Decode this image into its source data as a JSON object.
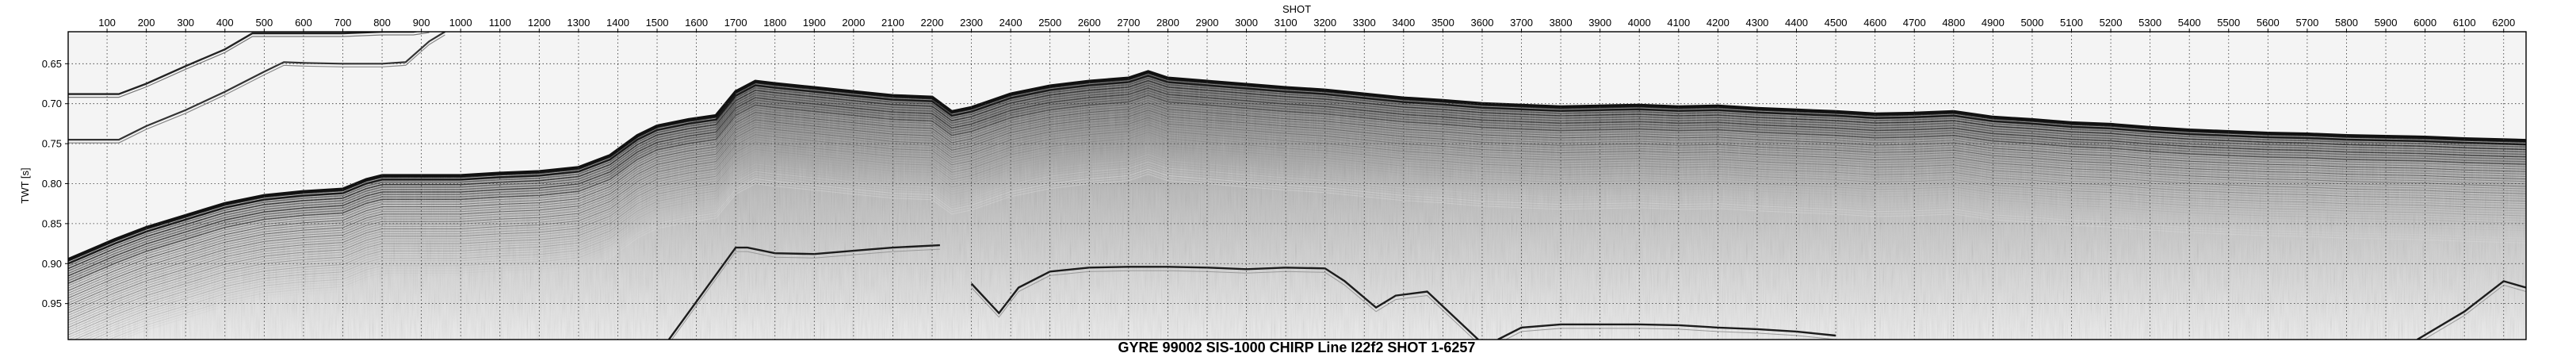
{
  "chart_data": {
    "type": "seismic_profile",
    "title": "GYRE 99002 SIS-1000 CHIRP Line I22f2 SHOT 1-6257",
    "xlabel": "SHOT",
    "ylabel": "TWT [s]",
    "xlim": [
      1,
      6257
    ],
    "ylim": [
      0.61,
      0.995
    ],
    "y_inverted": true,
    "grid": true,
    "grid_style": "dotted",
    "x_tick_position": "top",
    "x_ticks": [
      100,
      200,
      300,
      400,
      500,
      600,
      700,
      800,
      900,
      1000,
      1100,
      1200,
      1300,
      1400,
      1500,
      1600,
      1700,
      1800,
      1900,
      2000,
      2100,
      2200,
      2300,
      2400,
      2500,
      2600,
      2700,
      2800,
      2900,
      3000,
      3100,
      3200,
      3300,
      3400,
      3500,
      3600,
      3700,
      3800,
      3900,
      4000,
      4100,
      4200,
      4300,
      4400,
      4500,
      4600,
      4700,
      4800,
      4900,
      5000,
      5100,
      5200,
      5300,
      5400,
      5500,
      5600,
      5700,
      5800,
      5900,
      6000,
      6100,
      6200
    ],
    "y_ticks": [
      0.65,
      0.7,
      0.75,
      0.8,
      0.85,
      0.9,
      0.95
    ],
    "seafloor_reflector": {
      "shot": [
        1,
        120,
        200,
        300,
        400,
        500,
        600,
        700,
        760,
        800,
        900,
        1000,
        1100,
        1200,
        1300,
        1380,
        1450,
        1500,
        1580,
        1650,
        1700,
        1750,
        1800,
        1900,
        2000,
        2100,
        2200,
        2250,
        2300,
        2400,
        2500,
        2600,
        2700,
        2750,
        2800,
        2900,
        3000,
        3100,
        3200,
        3300,
        3400,
        3500,
        3600,
        3700,
        3800,
        3900,
        4000,
        4100,
        4200,
        4300,
        4400,
        4500,
        4600,
        4700,
        4800,
        4900,
        5000,
        5100,
        5200,
        5300,
        5400,
        5500,
        5600,
        5700,
        5800,
        5900,
        6000,
        6100,
        6257
      ],
      "twt": [
        0.895,
        0.87,
        0.855,
        0.84,
        0.825,
        0.815,
        0.81,
        0.807,
        0.795,
        0.79,
        0.79,
        0.79,
        0.787,
        0.785,
        0.78,
        0.765,
        0.74,
        0.728,
        0.72,
        0.715,
        0.685,
        0.672,
        0.675,
        0.68,
        0.685,
        0.69,
        0.692,
        0.71,
        0.705,
        0.688,
        0.678,
        0.672,
        0.668,
        0.66,
        0.668,
        0.672,
        0.676,
        0.68,
        0.683,
        0.688,
        0.693,
        0.696,
        0.7,
        0.702,
        0.704,
        0.703,
        0.702,
        0.704,
        0.703,
        0.706,
        0.708,
        0.71,
        0.713,
        0.712,
        0.71,
        0.717,
        0.72,
        0.724,
        0.726,
        0.73,
        0.733,
        0.735,
        0.737,
        0.738,
        0.74,
        0.741,
        0.742,
        0.744,
        0.746
      ]
    },
    "first_multiple": {
      "shot": [
        1,
        130,
        200,
        300,
        400,
        470,
        500,
        600,
        700,
        800,
        880,
        920
      ],
      "twt": [
        0.688,
        0.688,
        0.675,
        0.653,
        0.632,
        0.612,
        0.612,
        0.612,
        0.612,
        0.61,
        0.61,
        0.607
      ]
    },
    "second_multiple": {
      "shot": [
        1,
        130,
        200,
        300,
        400,
        500,
        550,
        600,
        700,
        800,
        860,
        920,
        960
      ],
      "twt": [
        0.745,
        0.745,
        0.728,
        0.708,
        0.685,
        0.66,
        0.648,
        0.649,
        0.65,
        0.65,
        0.648,
        0.622,
        0.61
      ]
    },
    "bottom_echo": [
      {
        "shot": [
          1530,
          1700,
          1730,
          1800,
          1900,
          2000,
          2100,
          2220
        ],
        "twt": [
          0.995,
          0.88,
          0.88,
          0.887,
          0.888,
          0.884,
          0.88,
          0.877
        ]
      },
      {
        "shot": [
          2300,
          2370,
          2420,
          2500,
          2600,
          2700,
          2800,
          2900,
          3000,
          3100,
          3200,
          3250,
          3330,
          3380,
          3460,
          3590
        ],
        "twt": [
          0.925,
          0.962,
          0.93,
          0.91,
          0.905,
          0.904,
          0.904,
          0.905,
          0.907,
          0.905,
          0.906,
          0.922,
          0.955,
          0.94,
          0.935,
          0.995
        ]
      },
      {
        "shot": [
          3640,
          3700,
          3800,
          3900,
          4000,
          4100,
          4200,
          4300,
          4400,
          4500
        ],
        "twt": [
          0.995,
          0.98,
          0.976,
          0.976,
          0.976,
          0.977,
          0.98,
          0.982,
          0.985,
          0.99
        ]
      },
      {
        "shot": [
          5980,
          6100,
          6200,
          6257
        ],
        "twt": [
          0.995,
          0.96,
          0.922,
          0.93
        ]
      }
    ]
  }
}
